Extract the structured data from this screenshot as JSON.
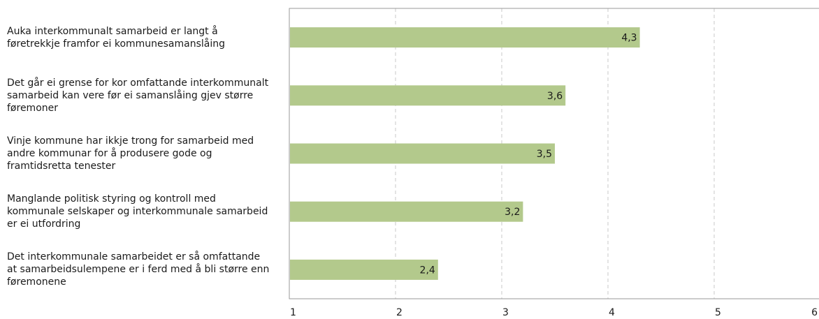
{
  "chart_data": {
    "type": "bar",
    "orientation": "horizontal",
    "categories": [
      "Auka interkommunalt samarbeid er langt å\nføretrekkje framfor ei kommunesamanslåing",
      "Det går ei grense for kor omfattande interkommunalt\nsamarbeid kan vere før ei samanslåing gjev større\nføremoner",
      "Vinje kommune har ikkje trong for samarbeid med\nandre kommunar for å produsere gode og\nframtidsretta tenester",
      "Manglande politisk styring og kontroll med\nkommunale selskaper og interkommunale samarbeid\ner ei utfordring",
      "Det interkommunale samarbeidet er så omfattande\nat samarbeidsulempene er i ferd med å bli større enn\nføremonene"
    ],
    "values": [
      4.3,
      3.6,
      3.5,
      3.2,
      2.4
    ],
    "data_labels": [
      "4,3",
      "3,6",
      "3,5",
      "3,2",
      "2,4"
    ],
    "xlim": [
      1,
      6
    ],
    "x_ticks": [
      "1",
      "2",
      "3",
      "4",
      "5",
      "6"
    ],
    "grid": "vertical-dashed",
    "bar_color": "#b3c98c",
    "title": "",
    "xlabel": "",
    "ylabel": ""
  }
}
